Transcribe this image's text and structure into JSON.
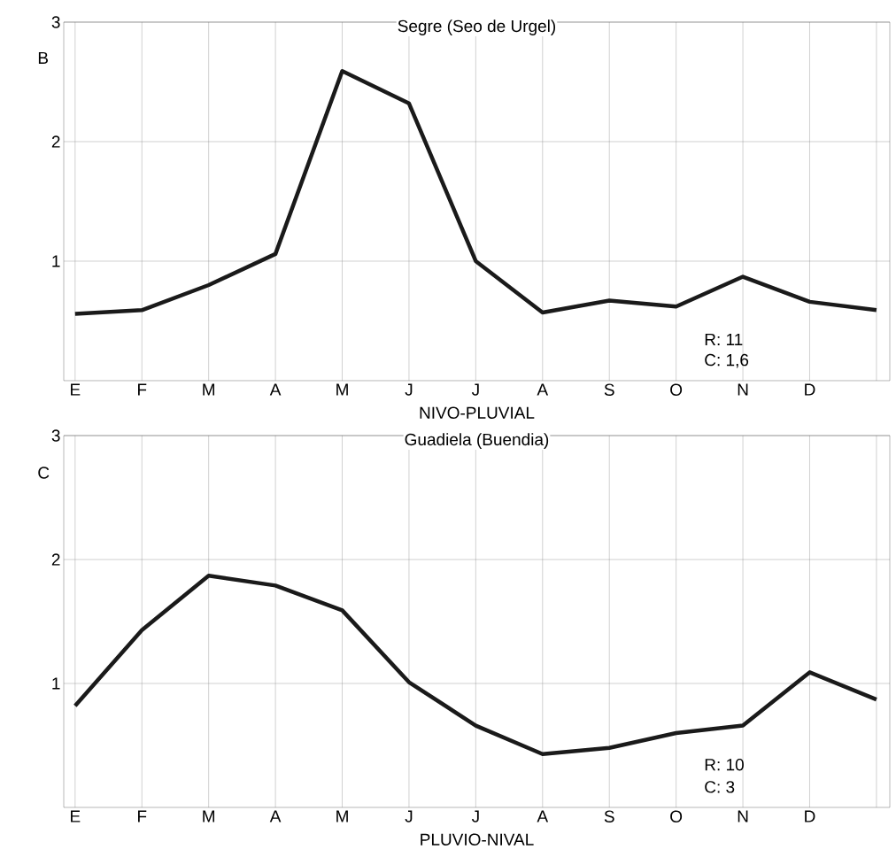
{
  "chart_data": [
    {
      "type": "line",
      "title": "Segre (Seo de Urgel)",
      "xlabel": "NIVO-PLUVIAL",
      "categories": [
        "E",
        "F",
        "M",
        "A",
        "M",
        "J",
        "J",
        "A",
        "S",
        "O",
        "N",
        "D",
        null
      ],
      "values": [
        0.56,
        0.59,
        0.8,
        1.06,
        2.59,
        2.32,
        1.0,
        0.57,
        0.67,
        0.62,
        0.87,
        0.66,
        0.59
      ],
      "color": "#1a1a1a",
      "ylim": [
        0,
        3
      ],
      "yticks": [
        1,
        2,
        3
      ],
      "grid": true,
      "annotations": [
        "B",
        "R: 11",
        "C: 1,6"
      ]
    },
    {
      "type": "line",
      "title": "Guadiela (Buendia)",
      "xlabel": "PLUVIO-NIVAL",
      "categories": [
        "E",
        "F",
        "M",
        "A",
        "M",
        "J",
        "J",
        "A",
        "S",
        "O",
        "N",
        "D",
        null
      ],
      "values": [
        0.82,
        1.43,
        1.87,
        1.79,
        1.59,
        1.01,
        0.66,
        0.43,
        0.48,
        0.6,
        0.66,
        1.09,
        0.87
      ],
      "color": "#1a1a1a",
      "ylim": [
        0,
        3
      ],
      "yticks": [
        1,
        2,
        3
      ],
      "grid": true,
      "annotations": [
        "C",
        "R: 10",
        "C: 3"
      ]
    }
  ]
}
